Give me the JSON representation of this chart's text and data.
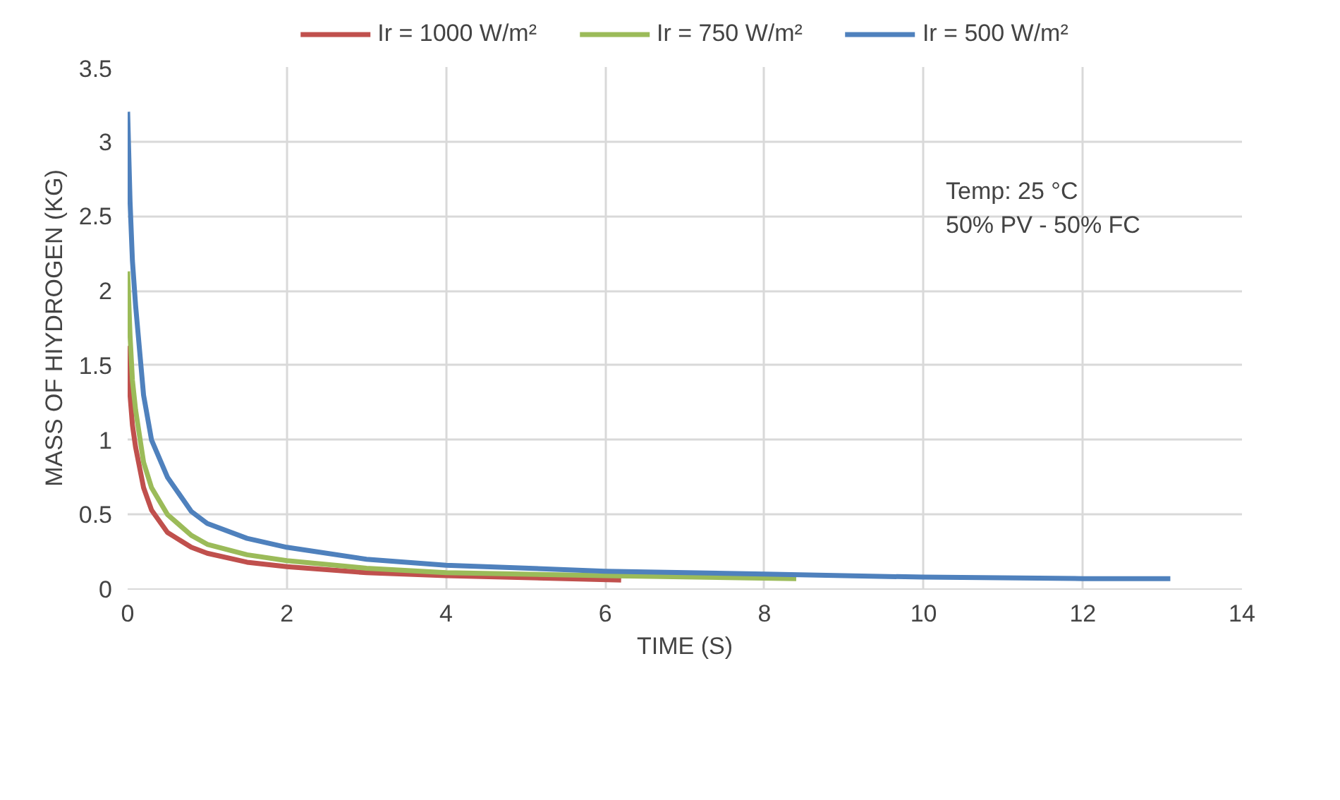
{
  "chart_data": {
    "type": "line",
    "xlabel": "TIME (S)",
    "ylabel": "MASS OF HIYDROGEN (KG)",
    "xlim": [
      0,
      14
    ],
    "xticks": [
      0,
      2,
      4,
      6,
      8,
      10,
      12,
      14
    ],
    "ylim": [
      0,
      3.5
    ],
    "yticks": [
      0,
      0.5,
      1,
      1.5,
      2,
      2.5,
      3,
      3.5
    ],
    "grid": true,
    "legend": "top",
    "marker": "none",
    "line_style": "solid",
    "annotations": [
      "Temp: 25 °C\n50% PV - 50% FC"
    ],
    "series": [
      {
        "name": "Ir = 1000 W/m²",
        "color": "#c0504d",
        "x": [
          0,
          0.03,
          0.06,
          0.1,
          0.2,
          0.3,
          0.5,
          0.8,
          1,
          1.5,
          2,
          3,
          4,
          6.2
        ],
        "values": [
          1.63,
          1.3,
          1.1,
          0.95,
          0.68,
          0.53,
          0.38,
          0.28,
          0.24,
          0.18,
          0.15,
          0.11,
          0.09,
          0.06
        ]
      },
      {
        "name": "Ir = 750 W/m²",
        "color": "#9bbb59",
        "x": [
          0,
          0.03,
          0.06,
          0.1,
          0.2,
          0.3,
          0.5,
          0.8,
          1,
          1.5,
          2,
          3,
          4,
          6,
          8.4
        ],
        "values": [
          2.13,
          1.7,
          1.4,
          1.2,
          0.85,
          0.68,
          0.5,
          0.36,
          0.3,
          0.23,
          0.19,
          0.14,
          0.11,
          0.09,
          0.07
        ]
      },
      {
        "name": "Ir = 500 W/m²",
        "color": "#4f81bd",
        "x": [
          0,
          0.03,
          0.06,
          0.1,
          0.2,
          0.3,
          0.5,
          0.8,
          1,
          1.5,
          2,
          3,
          4,
          6,
          8,
          10,
          12,
          13.1
        ],
        "values": [
          3.2,
          2.6,
          2.2,
          1.9,
          1.3,
          1.0,
          0.75,
          0.52,
          0.44,
          0.34,
          0.28,
          0.2,
          0.16,
          0.12,
          0.1,
          0.08,
          0.07,
          0.07
        ]
      }
    ]
  }
}
